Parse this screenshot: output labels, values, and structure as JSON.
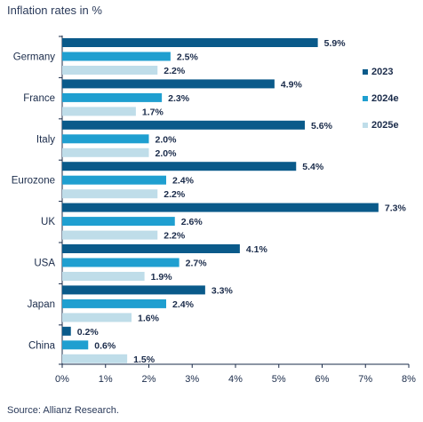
{
  "title": "Inflation rates in %",
  "source": "Source: Allianz Research.",
  "colors": {
    "2023": "#0a5a8a",
    "2024e": "#1f9fd0",
    "2025e": "#bfdde9",
    "axis": "#1a2b4a"
  },
  "chart_data": {
    "type": "bar",
    "orientation": "horizontal",
    "title": "Inflation rates in %",
    "categories": [
      "Germany",
      "France",
      "Italy",
      "Eurozone",
      "UK",
      "USA",
      "Japan",
      "China"
    ],
    "series": [
      {
        "name": "2023",
        "values": [
          5.9,
          4.9,
          5.6,
          5.4,
          7.3,
          4.1,
          3.3,
          0.2
        ]
      },
      {
        "name": "2024e",
        "values": [
          2.5,
          2.3,
          2.0,
          2.4,
          2.6,
          2.7,
          2.4,
          0.6
        ]
      },
      {
        "name": "2025e",
        "values": [
          2.2,
          1.7,
          2.0,
          2.2,
          2.2,
          1.9,
          1.6,
          1.5
        ]
      }
    ],
    "value_labels_suffix": "%",
    "xlim": [
      0,
      8
    ],
    "xticks": [
      "0%",
      "1%",
      "2%",
      "3%",
      "4%",
      "5%",
      "6%",
      "7%",
      "8%"
    ],
    "grid": false,
    "legend_position": "right"
  }
}
